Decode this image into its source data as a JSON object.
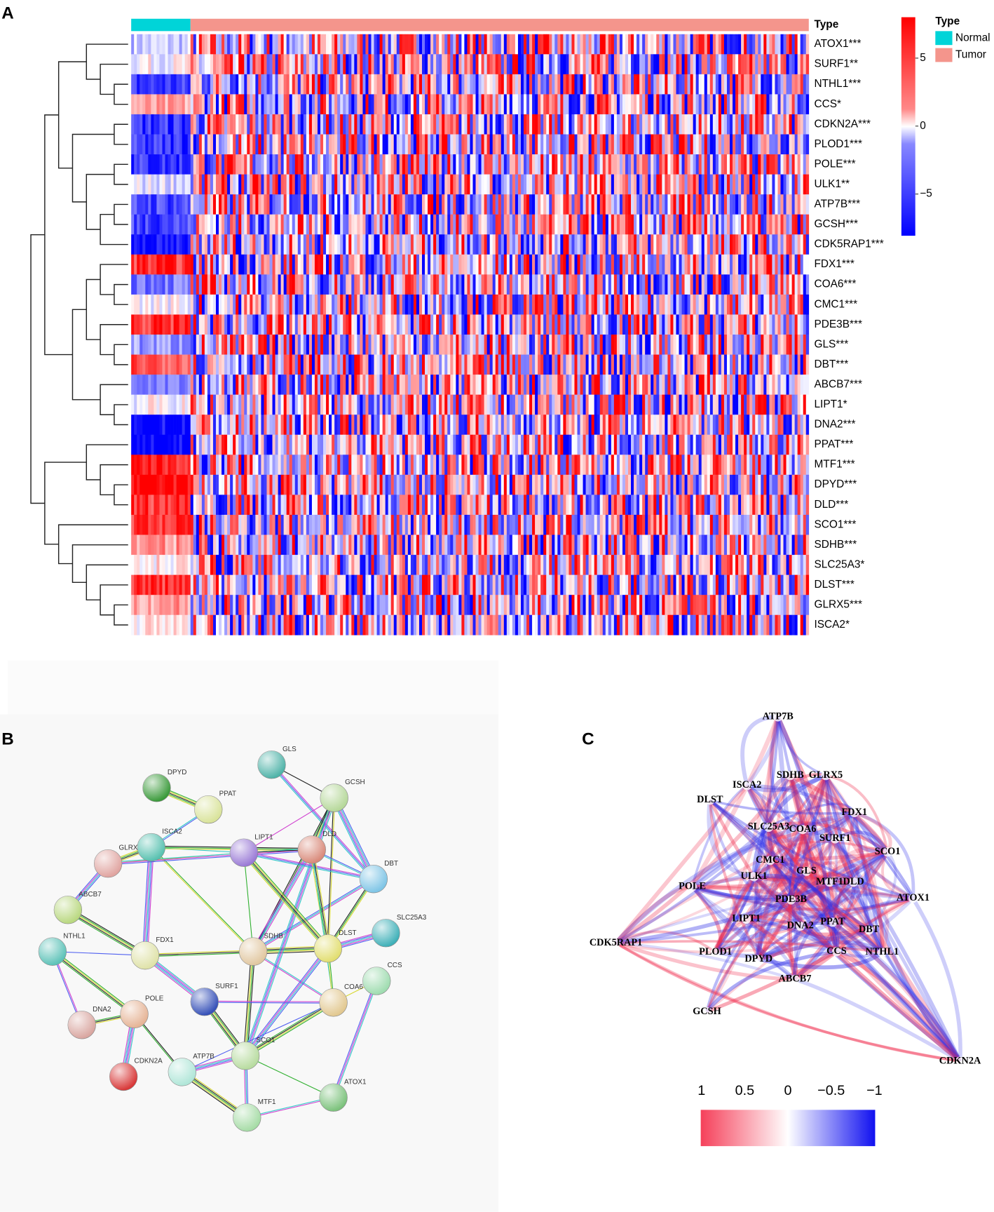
{
  "panels": {
    "a": "A",
    "b": "B",
    "c": "C"
  },
  "heatmap": {
    "annotation_title": "Type",
    "legend_title": "Type",
    "groups": [
      "Normal",
      "Tumor"
    ],
    "group_colors": [
      "#00d4d8",
      "#f4958c"
    ],
    "genes": [
      "ATOX1***",
      "SURF1**",
      "NTHL1***",
      "CCS*",
      "CDKN2A***",
      "PLOD1***",
      "POLE***",
      "ULK1**",
      "ATP7B***",
      "GCSH***",
      "CDK5RAP1***",
      "FDX1***",
      "COA6***",
      "CMC1***",
      "PDE3B***",
      "GLS***",
      "DBT***",
      "ABCB7***",
      "LIPT1*",
      "DNA2***",
      "PPAT***",
      "MTF1***",
      "DPYD***",
      "DLD***",
      "SCO1***",
      "SDHB***",
      "SLC25A3*",
      "DLST***",
      "GLRX5***",
      "ISCA2*"
    ],
    "colorbar_ticks": [
      5,
      0,
      {
        "value": -5,
        "label": "−5"
      }
    ]
  },
  "network_b": {
    "nodes": [
      {
        "label": "GLS"
      },
      {
        "label": "DPYD"
      },
      {
        "label": "PPAT"
      },
      {
        "label": "GCSH"
      },
      {
        "label": "ISCA2"
      },
      {
        "label": "GLRX"
      },
      {
        "label": "LIPT1"
      },
      {
        "label": "DLD"
      },
      {
        "label": "DBT"
      },
      {
        "label": "ABCB7"
      },
      {
        "label": "SLC25A3"
      },
      {
        "label": "NTHL1"
      },
      {
        "label": "FDX1"
      },
      {
        "label": "SDHB"
      },
      {
        "label": "DLST"
      },
      {
        "label": "CCS"
      },
      {
        "label": "SURF1"
      },
      {
        "label": "COA6"
      },
      {
        "label": "POLE"
      },
      {
        "label": "DNA2"
      },
      {
        "label": "SCO1"
      },
      {
        "label": "CDKN2A"
      },
      {
        "label": "ATP7B"
      },
      {
        "label": "ATOX1"
      },
      {
        "label": "MTF1"
      }
    ]
  },
  "network_c": {
    "nodes": [
      "ATP7B",
      "SDHB",
      "GLRX5",
      "ISCA2",
      "DLST",
      "FDX1",
      "SLC25A3",
      "COA6",
      "SURF1",
      "SCO1",
      "CMC1",
      "GLS",
      "ULK1",
      "MTF1",
      "DLD",
      "POLE",
      "ATOX1",
      "PDE3B",
      "LIPT1",
      "PPAT",
      "DNA2",
      "DBT",
      "CDK5RAP1",
      "PLOD1",
      "CCS",
      "NTHL1",
      "DPYD",
      "ABCB7",
      "GCSH",
      "CDKN2A"
    ],
    "legend_ticks": [
      1,
      0.5,
      0,
      {
        "value": -0.5,
        "label": "−0.5"
      },
      {
        "value": -1,
        "label": "−1"
      }
    ]
  }
}
